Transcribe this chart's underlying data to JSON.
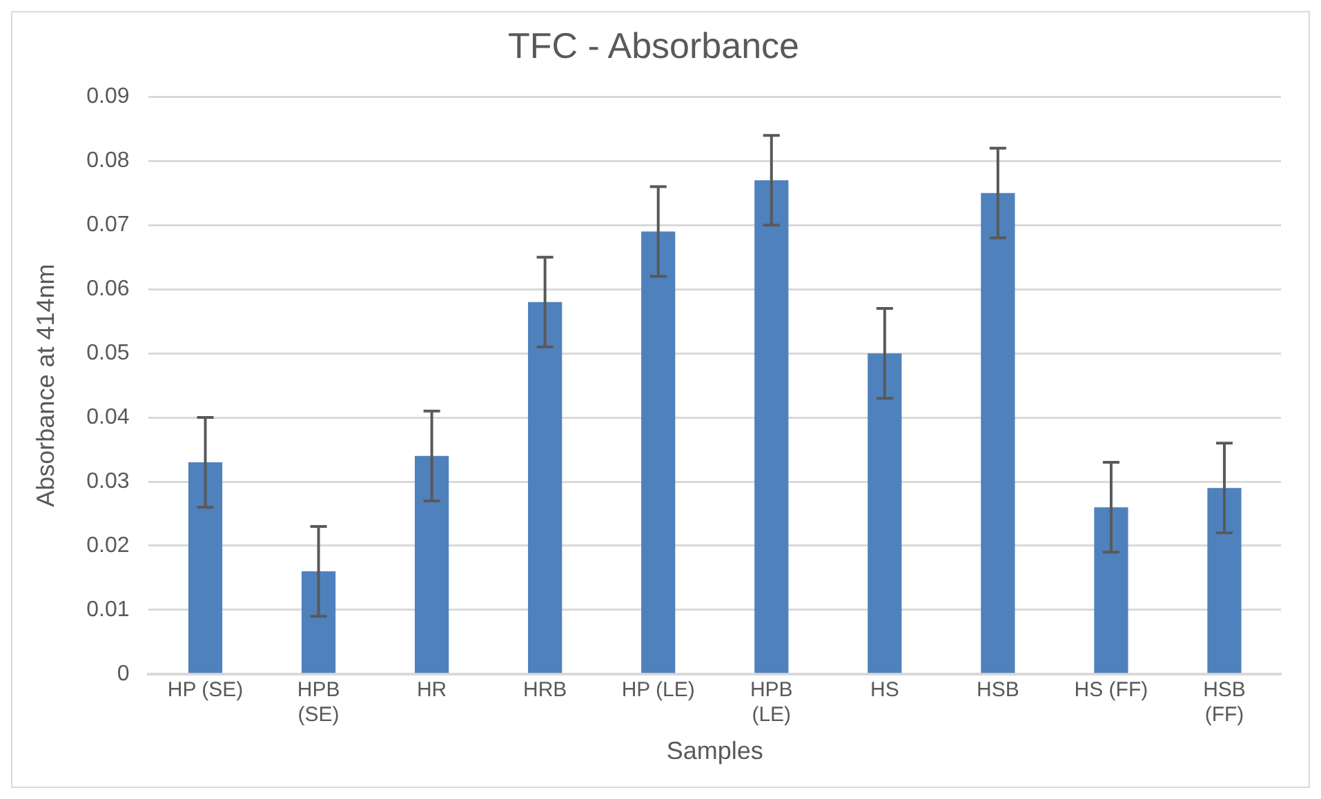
{
  "chart_data": {
    "type": "bar",
    "title": "TFC - Absorbance",
    "xlabel": "Samples",
    "ylabel": "Absorbance at 414nm",
    "categories": [
      "HP (SE)",
      "HPB (SE)",
      "HR",
      "HRB",
      "HP (LE)",
      "HPB (LE)",
      "HS",
      "HSB",
      "HS (FF)",
      "HSB (FF)"
    ],
    "values": [
      0.033,
      0.016,
      0.034,
      0.058,
      0.069,
      0.077,
      0.05,
      0.075,
      0.026,
      0.029
    ],
    "errors": [
      0.007,
      0.007,
      0.007,
      0.007,
      0.007,
      0.007,
      0.007,
      0.007,
      0.007,
      0.007
    ],
    "color": "#4f81bd",
    "ylim": [
      0,
      0.09
    ],
    "yticks": [
      0,
      0.01,
      0.02,
      0.03,
      0.04,
      0.05,
      0.06,
      0.07,
      0.08,
      0.09
    ],
    "grid": "y",
    "legend": false
  }
}
